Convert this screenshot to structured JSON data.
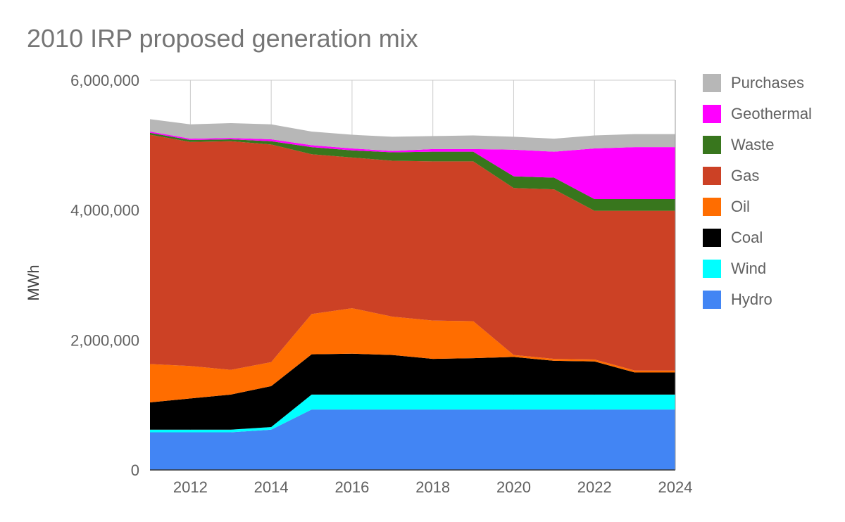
{
  "chart_data": {
    "type": "area",
    "stacked": true,
    "title": "2010 IRP proposed generation mix",
    "xlabel": "",
    "ylabel": "MWh",
    "x": [
      2011,
      2012,
      2013,
      2014,
      2015,
      2016,
      2017,
      2018,
      2019,
      2020,
      2021,
      2022,
      2023,
      2024
    ],
    "x_ticks": [
      "2012",
      "2014",
      "2016",
      "2018",
      "2020",
      "2022",
      "2024"
    ],
    "y_ticks": [
      "0",
      "2,000,000",
      "4,000,000",
      "6,000,000"
    ],
    "ylim": [
      0,
      6000000
    ],
    "grid": "vertical lines at x ticks, horizontal line at 6,000,000",
    "legend_position": "right",
    "series": [
      {
        "name": "Hydro",
        "color": "#4285f4",
        "values": [
          580000,
          580000,
          580000,
          620000,
          930000,
          930000,
          930000,
          930000,
          930000,
          930000,
          930000,
          930000,
          930000,
          930000
        ]
      },
      {
        "name": "Wind",
        "color": "#00ffff",
        "values": [
          40000,
          40000,
          40000,
          40000,
          230000,
          230000,
          230000,
          230000,
          230000,
          230000,
          230000,
          230000,
          230000,
          230000
        ]
      },
      {
        "name": "Coal",
        "color": "#000000",
        "values": [
          420000,
          480000,
          540000,
          630000,
          620000,
          630000,
          610000,
          550000,
          560000,
          580000,
          520000,
          510000,
          340000,
          340000
        ]
      },
      {
        "name": "Oil",
        "color": "#ff6d00",
        "values": [
          590000,
          500000,
          380000,
          370000,
          620000,
          700000,
          590000,
          590000,
          570000,
          30000,
          30000,
          30000,
          30000,
          30000
        ]
      },
      {
        "name": "Gas",
        "color": "#cc4125",
        "values": [
          3530000,
          3450000,
          3520000,
          3350000,
          2460000,
          2320000,
          2400000,
          2450000,
          2460000,
          2570000,
          2610000,
          2290000,
          2460000,
          2460000
        ]
      },
      {
        "name": "Waste",
        "color": "#38761d",
        "values": [
          30000,
          30000,
          30000,
          50000,
          110000,
          110000,
          130000,
          150000,
          150000,
          180000,
          180000,
          180000,
          180000,
          180000
        ]
      },
      {
        "name": "Geothermal",
        "color": "#ff00ff",
        "values": [
          20000,
          20000,
          20000,
          30000,
          30000,
          30000,
          20000,
          40000,
          40000,
          410000,
          400000,
          780000,
          800000,
          800000
        ]
      },
      {
        "name": "Purchases",
        "color": "#b7b7b7",
        "values": [
          190000,
          220000,
          230000,
          230000,
          210000,
          210000,
          220000,
          200000,
          210000,
          200000,
          200000,
          200000,
          200000,
          200000
        ]
      }
    ]
  }
}
